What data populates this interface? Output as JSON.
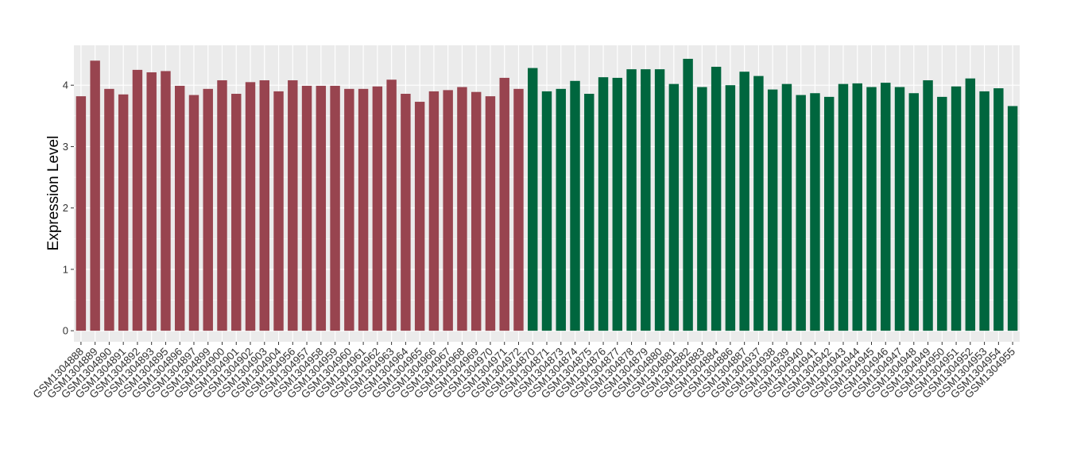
{
  "chart_data": {
    "type": "bar",
    "title": "",
    "xlabel": "",
    "ylabel": "Expression Level",
    "ylim": [
      -0.18,
      4.65
    ],
    "yticks": [
      0,
      1,
      2,
      3,
      4
    ],
    "grid": true,
    "legend": "none",
    "categories": [
      "GSM1304888",
      "GSM1304889",
      "GSM1304890",
      "GSM1304891",
      "GSM1304892",
      "GSM1304893",
      "GSM1304895",
      "GSM1304896",
      "GSM1304897",
      "GSM1304899",
      "GSM1304900",
      "GSM1304901",
      "GSM1304902",
      "GSM1304903",
      "GSM1304904",
      "GSM1304956",
      "GSM1304957",
      "GSM1304958",
      "GSM1304959",
      "GSM1304960",
      "GSM1304961",
      "GSM1304962",
      "GSM1304963",
      "GSM1304964",
      "GSM1304965",
      "GSM1304966",
      "GSM1304967",
      "GSM1304968",
      "GSM1304969",
      "GSM1304970",
      "GSM1304971",
      "GSM1304972",
      "GSM1304870",
      "GSM1304871",
      "GSM1304873",
      "GSM1304874",
      "GSM1304875",
      "GSM1304876",
      "GSM1304877",
      "GSM1304878",
      "GSM1304879",
      "GSM1304880",
      "GSM1304881",
      "GSM1304882",
      "GSM1304883",
      "GSM1304884",
      "GSM1304886",
      "GSM1304887",
      "GSM1304937",
      "GSM1304938",
      "GSM1304939",
      "GSM1304940",
      "GSM1304941",
      "GSM1304942",
      "GSM1304943",
      "GSM1304944",
      "GSM1304945",
      "GSM1304946",
      "GSM1304947",
      "GSM1304948",
      "GSM1304949",
      "GSM1304950",
      "GSM1304951",
      "GSM1304952",
      "GSM1304953",
      "GSM1304954",
      "GSM1304955"
    ],
    "values": [
      3.82,
      4.4,
      3.94,
      3.85,
      4.25,
      4.21,
      4.23,
      3.99,
      3.84,
      3.94,
      4.08,
      3.86,
      4.05,
      4.08,
      3.9,
      4.08,
      3.99,
      3.99,
      3.99,
      3.94,
      3.94,
      3.98,
      4.09,
      3.86,
      3.73,
      3.9,
      3.92,
      3.97,
      3.89,
      3.82,
      4.12,
      3.94,
      4.28,
      3.9,
      3.94,
      4.07,
      3.86,
      4.13,
      4.12,
      4.26,
      4.26,
      4.26,
      4.02,
      4.43,
      3.97,
      4.3,
      4.0,
      4.22,
      4.15,
      3.93,
      4.02,
      3.84,
      3.87,
      3.81,
      4.02,
      4.03,
      3.97,
      4.04,
      3.97,
      3.87,
      4.08,
      3.81,
      3.98,
      4.11,
      3.9,
      3.95,
      3.66
    ],
    "group_sizes": [
      32,
      35
    ],
    "group_colors": [
      "#98444f",
      "#00663e"
    ],
    "panel_color": "#ebebeb",
    "grid_color": "#ffffff"
  }
}
